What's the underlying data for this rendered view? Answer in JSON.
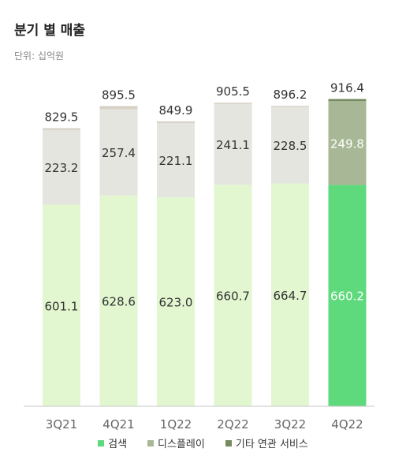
{
  "title": "분기 별 매출",
  "unit_label": "단위: 십억원",
  "chart_data": {
    "type": "bar",
    "stacked": true,
    "categories": [
      "3Q21",
      "4Q21",
      "1Q22",
      "2Q22",
      "3Q22",
      "4Q22"
    ],
    "totals": [
      829.5,
      895.5,
      849.9,
      905.5,
      896.2,
      916.4
    ],
    "series": [
      {
        "name": "검색",
        "values": [
          601.1,
          628.6,
          623.0,
          660.7,
          664.7,
          660.2
        ],
        "color": "#e2f7d0",
        "highlight_color": "#5ed97c"
      },
      {
        "name": "디스플레이",
        "values": [
          223.2,
          257.4,
          221.1,
          241.1,
          228.5,
          249.8
        ],
        "color": "#e4e5de",
        "highlight_color": "#a8b896"
      },
      {
        "name": "기타 연관 서비스",
        "values": [
          5.2,
          9.5,
          5.8,
          3.7,
          3.0,
          6.4
        ],
        "color": "#d7d1c5",
        "highlight_color": "#758a5f"
      }
    ],
    "highlight_index": 5,
    "ylim": [
      0,
      1000
    ],
    "legend_position": "bottom",
    "grid": false,
    "legend_colors": [
      "#5ed97c",
      "#a8b896",
      "#758a5f"
    ]
  }
}
